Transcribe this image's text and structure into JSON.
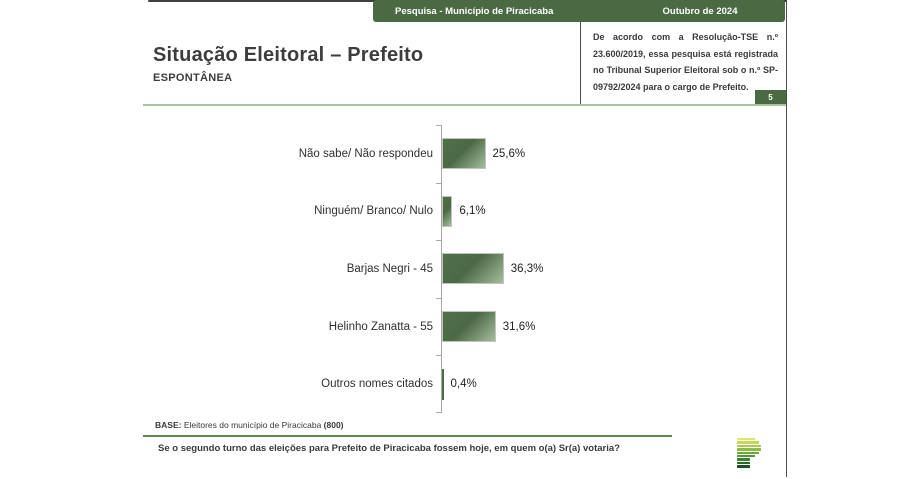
{
  "header": {
    "left_label": "Pesquisa - Município de Piracicaba",
    "right_label": "Outubro de 2024"
  },
  "legal_notice": {
    "text": "De acordo com a Resolução-TSE n.º 23.600/2019, essa pesquisa está registrada no Tribunal Superior Eleitoral sob o n.º SP-09792/2024 para o cargo de Prefeito.",
    "page_number": "5"
  },
  "title": "Situação Eleitoral – Prefeito",
  "subtitle": "ESPONTÂNEA",
  "chart_data": {
    "type": "bar",
    "orientation": "horizontal",
    "categories": [
      "Não sabe/ Não respondeu",
      "Ninguém/ Branco/ Nulo",
      "Barjas Negri - 45",
      "Helinho Zanatta - 55",
      "Outros nomes citados"
    ],
    "values": [
      25.6,
      6.1,
      36.3,
      31.6,
      0.4
    ],
    "value_labels": [
      "25,6%",
      "6,1%",
      "36,3%",
      "31,6%",
      "0,4%"
    ],
    "xlim": [
      0,
      40
    ],
    "grid": false,
    "legend": "none",
    "bar_color_dark": "#4e6c48",
    "bar_color_light": "#a6bd9c"
  },
  "footer": {
    "base_prefix": "BASE:",
    "base_text": " Eleitores do município de Piracicaba ",
    "base_count": "(800)",
    "question": "Se o segundo turno das eleições para Prefeito de Piracicaba fossem hoje, em quem o(a) Sr(a) votaria?"
  },
  "colors": {
    "header_green": "#4a6a43",
    "light_rule_green": "#a9c49a",
    "footer_rule_green": "#5d8a52",
    "axis_gray": "#a8a8a8"
  },
  "logo": {
    "name": "stacked-bars-logo",
    "stripes": [
      {
        "w": 18,
        "color": "#d9e57a"
      },
      {
        "w": 22,
        "color": "#c2da54"
      },
      {
        "w": 24,
        "color": "#a8cc49"
      },
      {
        "w": 24,
        "color": "#8cbd41"
      },
      {
        "w": 22,
        "color": "#6ca93a"
      },
      {
        "w": 18,
        "color": "#539736"
      },
      {
        "w": 13,
        "color": "#3e8030"
      },
      {
        "w": 13,
        "color": "#2b662b"
      },
      {
        "w": 13,
        "color": "#1d5026"
      }
    ]
  }
}
